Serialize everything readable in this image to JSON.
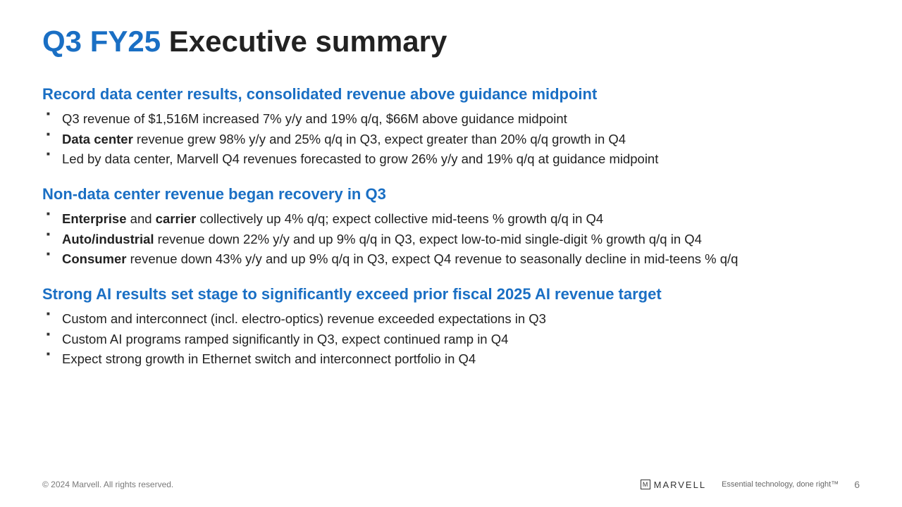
{
  "title": {
    "accent": "Q3 FY25",
    "rest": " Executive summary"
  },
  "sections": [
    {
      "heading": "Record data center results, consolidated revenue above guidance midpoint",
      "items": [
        {
          "pre": "",
          "bold": "",
          "post": "Q3 revenue of $1,516M increased 7% y/y and 19% q/q, $66M above guidance midpoint"
        },
        {
          "pre": "",
          "bold": "Data center",
          "post": " revenue grew 98% y/y and 25% q/q in Q3, expect greater than 20% q/q growth in Q4"
        },
        {
          "pre": "",
          "bold": "",
          "post": "Led by data center, Marvell Q4 revenues forecasted to grow 26% y/y and 19% q/q at guidance midpoint"
        }
      ]
    },
    {
      "heading": "Non-data center revenue began recovery in Q3",
      "items": [
        {
          "pre": "",
          "bold": "Enterprise",
          "mid": " and ",
          "bold2": "carrier",
          "post": " collectively up 4% q/q; expect collective mid-teens % growth q/q in Q4"
        },
        {
          "pre": "",
          "bold": "Auto/industrial",
          "post": " revenue down 22% y/y and up 9% q/q in Q3, expect low-to-mid single-digit % growth q/q in Q4"
        },
        {
          "pre": "",
          "bold": "Consumer",
          "post": " revenue down 43% y/y and up 9% q/q in Q3, expect Q4 revenue to seasonally decline in mid-teens % q/q"
        }
      ]
    },
    {
      "heading": "Strong AI results set stage to significantly exceed prior fiscal 2025 AI revenue target",
      "items": [
        {
          "pre": "",
          "bold": "",
          "post": "Custom and interconnect (incl. electro-optics) revenue exceeded expectations in Q3"
        },
        {
          "pre": "",
          "bold": "",
          "post": "Custom AI programs ramped significantly in Q3, expect continued ramp in Q4"
        },
        {
          "pre": "",
          "bold": "",
          "post": "Expect strong growth in Ethernet switch and interconnect portfolio in Q4"
        }
      ]
    }
  ],
  "footer": {
    "copyright": "© 2024 Marvell. All rights reserved.",
    "logo_text": "MARVELL",
    "logo_glyph": "M",
    "tagline": "Essential technology, done right™",
    "page": "6"
  },
  "colors": {
    "accent": "#1a6fc4",
    "text": "#222222",
    "muted": "#7a7a7a",
    "bg": "#ffffff"
  }
}
